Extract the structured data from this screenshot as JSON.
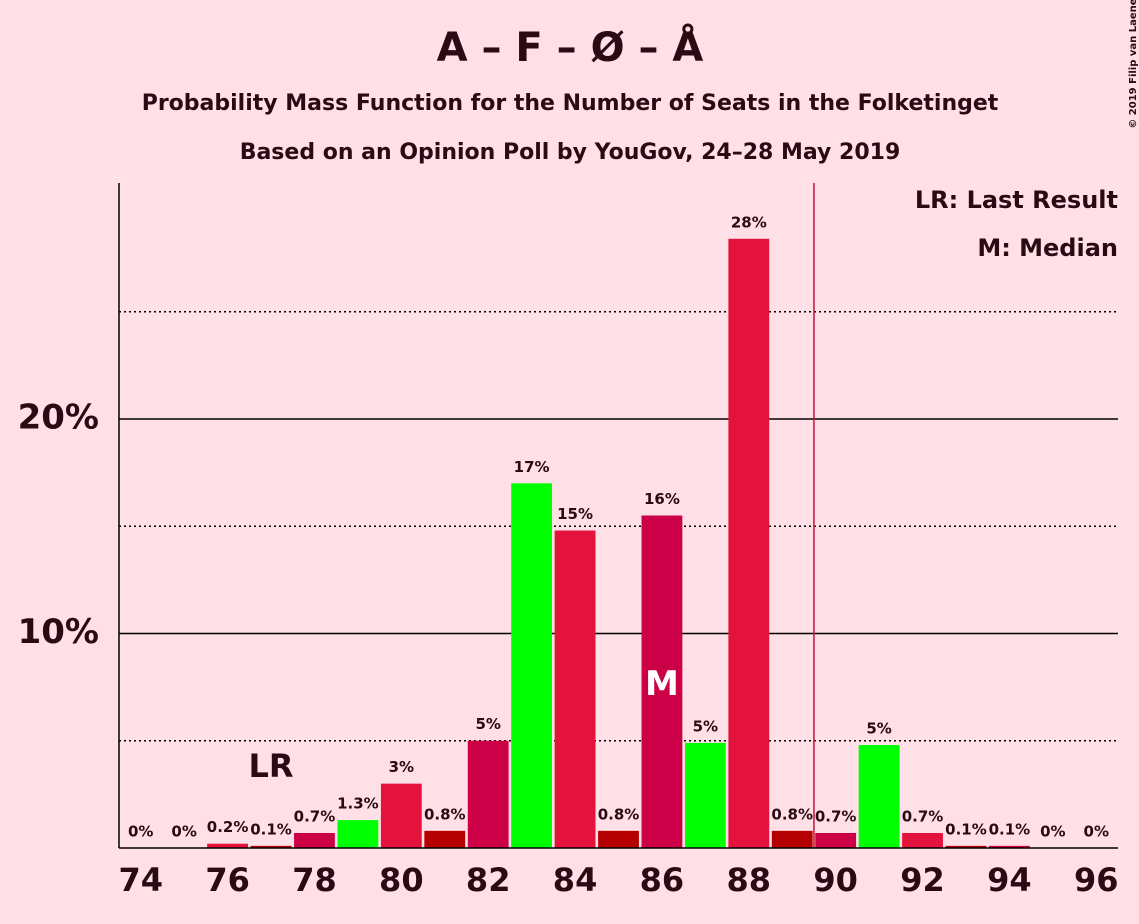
{
  "chart_data": {
    "type": "bar",
    "title": "A – F – Ø – Å",
    "subtitle": "Probability Mass Function for the Number of Seats in the Folketinget",
    "subtitle2": "Based on an Opinion Poll by YouGov, 24–28 May 2019",
    "copyright": "© 2019 Filip van Laenen",
    "x": [
      74,
      75,
      76,
      77,
      78,
      79,
      80,
      81,
      82,
      83,
      84,
      85,
      86,
      87,
      88,
      89,
      90,
      91,
      92,
      93,
      94,
      95,
      96
    ],
    "values": [
      0,
      0,
      0.2,
      0.1,
      0.7,
      1.3,
      3.0,
      0.8,
      5.0,
      17.0,
      14.8,
      0.8,
      15.5,
      4.9,
      28.4,
      0.8,
      0.7,
      4.8,
      0.7,
      0.1,
      0.1,
      0,
      0
    ],
    "value_labels": [
      "0%",
      "0%",
      "0.2%",
      "0.1%",
      "0.7%",
      "1.3%",
      "3%",
      "0.8%",
      "5%",
      "17%",
      "15%",
      "0.8%",
      "16%",
      "5%",
      "28%",
      "0.8%",
      "0.7%",
      "5%",
      "0.7%",
      "0.1%",
      "0.1%",
      "0%",
      "0%"
    ],
    "colors": [
      "#CC0047",
      "#00FF00",
      "#E3133D",
      "#B40000",
      "#CC0047",
      "#00FF00",
      "#E3133D",
      "#B40000",
      "#CC0047",
      "#00FF00",
      "#E3133D",
      "#B40000",
      "#CC0047",
      "#00FF00",
      "#E3133D",
      "#B40000",
      "#CC0047",
      "#00FF00",
      "#E3133D",
      "#B40000",
      "#CC0047",
      "#00FF00",
      "#E3133D"
    ],
    "xlim": [
      73.5,
      96.5
    ],
    "xticks": [
      74,
      76,
      78,
      80,
      82,
      84,
      86,
      88,
      90,
      92,
      94,
      96
    ],
    "ylim": [
      0,
      31
    ],
    "yticks": [
      {
        "value": 10,
        "label": "10%"
      },
      {
        "value": 20,
        "label": "20%"
      }
    ],
    "minor_yticks": [
      5,
      15,
      25
    ],
    "majority_line": 89.5,
    "last_result": {
      "label": "LR",
      "x": 77
    },
    "median": {
      "label": "M",
      "x": 86
    },
    "legend": [
      "LR: Last Result",
      "M: Median"
    ]
  }
}
